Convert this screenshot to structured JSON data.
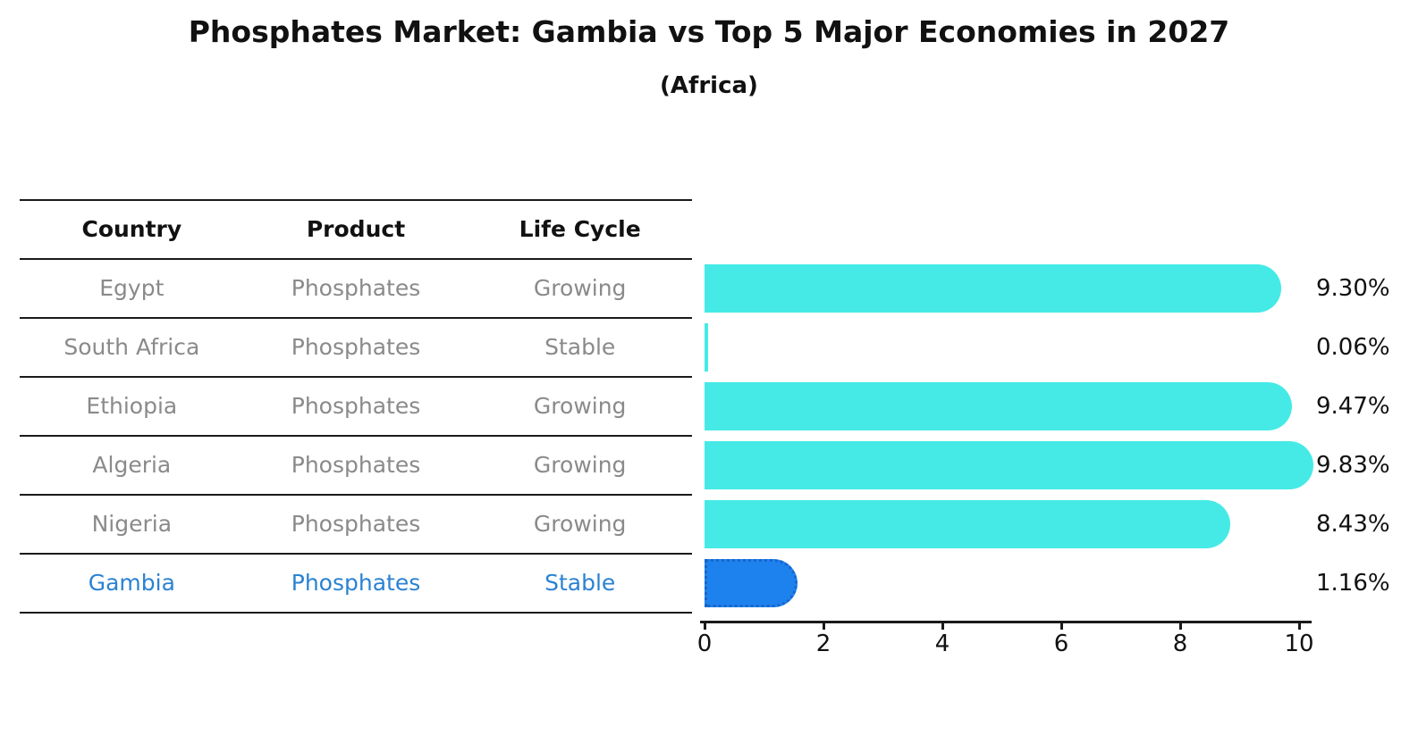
{
  "title": "Phosphates Market: Gambia vs Top 5 Major Economies in 2027",
  "subtitle": "(Africa)",
  "table": {
    "headers": [
      "Country",
      "Product",
      "Life Cycle"
    ],
    "rows": [
      {
        "country": "Egypt",
        "product": "Phosphates",
        "life_cycle": "Growing",
        "highlight": false
      },
      {
        "country": "South Africa",
        "product": "Phosphates",
        "life_cycle": "Stable",
        "highlight": false
      },
      {
        "country": "Ethiopia",
        "product": "Phosphates",
        "life_cycle": "Growing",
        "highlight": false
      },
      {
        "country": "Algeria",
        "product": "Phosphates",
        "life_cycle": "Growing",
        "highlight": false
      },
      {
        "country": "Nigeria",
        "product": "Phosphates",
        "life_cycle": "Growing",
        "highlight": false
      },
      {
        "country": "Gambia",
        "product": "Phosphates",
        "life_cycle": "Stable",
        "highlight": true
      }
    ]
  },
  "chart_data": {
    "type": "bar",
    "orientation": "horizontal",
    "categories": [
      "Egypt",
      "South Africa",
      "Ethiopia",
      "Algeria",
      "Nigeria",
      "Gambia"
    ],
    "values": [
      9.3,
      0.06,
      9.47,
      9.83,
      8.43,
      1.16
    ],
    "value_labels": [
      "9.30%",
      "0.06%",
      "9.47%",
      "9.83%",
      "8.43%",
      "1.16%"
    ],
    "highlight_index": 5,
    "xlabel": "",
    "ylabel": "",
    "xlim": [
      0,
      10.2
    ],
    "x_ticks": [
      0,
      2,
      4,
      6,
      8,
      10
    ],
    "grid": false,
    "legend": "none"
  },
  "colors": {
    "bar": "#45EAE6",
    "highlight_bar": "#1E82EE",
    "highlight_border": "#1566CC",
    "highlight_text": "#2B82D2",
    "table_text": "#8a8a8a",
    "heading_text": "#111111",
    "line": "#1a1a1a"
  }
}
